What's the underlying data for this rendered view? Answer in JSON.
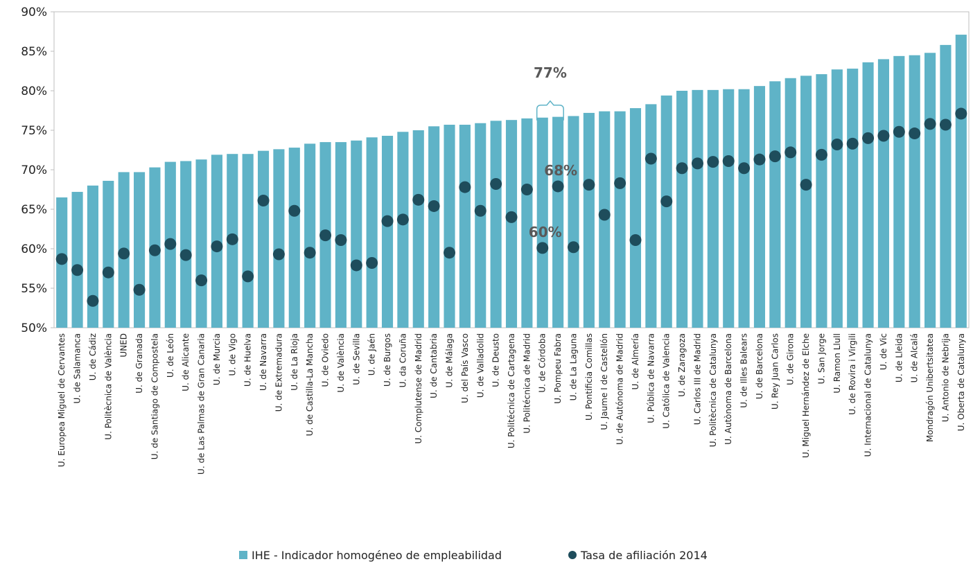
{
  "chart_data": {
    "type": "bar",
    "title": "",
    "xlabel": "",
    "ylabel": "",
    "ylim": [
      50,
      90
    ],
    "yticks": [
      "50%",
      "55%",
      "60%",
      "65%",
      "70%",
      "75%",
      "80%",
      "85%",
      "90%"
    ],
    "grid": false,
    "legend_position": "bottom",
    "categories": [
      "U. Europea Miguel de Cervantes",
      "U. de Salamanca",
      "U. de Cádiz",
      "U. Politècnica de València",
      "UNED",
      "U. de Granada",
      "U. de Santiago de Compostela",
      "U. de León",
      "U. de Alicante",
      "U. de Las Palmas de Gran Canaria",
      "U. de Murcia",
      "U. de Vigo",
      "U. de Huelva",
      "U. de Navarra",
      "U. de Extremadura",
      "U. de La Rioja",
      "U. de Castilla-La Mancha",
      "U. de Oviedo",
      "U. de València",
      "U. de Sevilla",
      "U. de Jaén",
      "U. de Burgos",
      "U. da Coruña",
      "U. Complutense de Madrid",
      "U. de Cantabria",
      "U. de Málaga",
      "U. del País Vasco",
      "U. de Valladolid",
      "U. de Deusto",
      "U. Politécnica de Cartagena",
      "U. Politécnica de Madrid",
      "U. de Córdoba",
      "U. Pompeu Fabra",
      "U. de La Laguna",
      "U. Pontificia Comillas",
      "U. Jaume I de Castellón",
      "U. de Autónoma de Madrid",
      "U. de Almería",
      "U. Pública de Navarra",
      "U. Católica de Valencia",
      "U. de Zaragoza",
      "U. Carlos III de Madrid",
      "U. Politècnica de Catalunya",
      "U. Autònoma de Barcelona",
      "U. de Illes Balears",
      "U. de Barcelona",
      "U. Rey Juan Carlos",
      "U. de Girona",
      "U. Miguel Hernández de Elche",
      "U. San Jorge",
      "U. Ramon Llull",
      "U. de Rovira i Virgili",
      "U. Internacional de Catalunya",
      "U. de Vic",
      "U. de Lleida",
      "U. de Alcalá",
      "Mondragón Unibertsitatea",
      "U. Antonio de Nebrija",
      "U. Oberta de Catalunya"
    ],
    "series": [
      {
        "name": "IHE - Indicador homogéneo de empleabilidad",
        "type": "bar",
        "color": "#5fb3c7",
        "values": [
          66.5,
          67.2,
          68.0,
          68.6,
          69.7,
          69.7,
          70.3,
          71.0,
          71.1,
          71.3,
          71.9,
          72.0,
          72.0,
          72.4,
          72.6,
          72.8,
          73.3,
          73.5,
          73.5,
          73.7,
          74.1,
          74.3,
          74.8,
          75.0,
          75.5,
          75.7,
          75.7,
          75.9,
          76.2,
          76.3,
          76.5,
          76.6,
          76.7,
          76.8,
          77.2,
          77.4,
          77.4,
          77.8,
          78.3,
          79.4,
          80.0,
          80.1,
          80.1,
          80.2,
          80.2,
          80.6,
          81.2,
          81.6,
          81.9,
          82.1,
          82.7,
          82.8,
          83.6,
          84.0,
          84.4,
          84.5,
          84.8,
          85.8,
          87.1
        ]
      },
      {
        "name": "Tasa de afiliación 2014",
        "type": "scatter",
        "color": "#1e4d5c",
        "values": [
          58.7,
          57.3,
          53.4,
          57.0,
          59.4,
          54.8,
          59.8,
          60.6,
          59.2,
          56.0,
          60.3,
          61.2,
          56.5,
          66.1,
          59.3,
          64.8,
          59.5,
          61.7,
          61.1,
          57.9,
          58.2,
          63.5,
          63.7,
          66.2,
          65.4,
          59.5,
          67.8,
          64.8,
          68.2,
          64.0,
          67.5,
          60.1,
          67.9,
          60.2,
          68.1,
          64.3,
          68.3,
          61.1,
          71.4,
          66.0,
          70.2,
          70.8,
          71.0,
          71.1,
          70.2,
          71.3,
          71.7,
          72.2,
          68.1,
          71.9,
          73.2,
          73.3,
          74.0,
          74.3,
          74.8,
          74.6,
          75.8,
          75.7,
          77.1
        ]
      }
    ],
    "annotations": [
      {
        "text": "77%",
        "category": "U. Pompeu Fabra",
        "kind": "bar-range-brace",
        "value": 77
      },
      {
        "text": "68%",
        "category": "U. Pompeu Fabra",
        "value": 68
      },
      {
        "text": "60%",
        "category": "U. de Córdoba",
        "value": 60
      }
    ]
  },
  "legend": {
    "items": [
      {
        "label": "IHE - Indicador homogéneo de empleabilidad",
        "shape": "square",
        "color": "#5fb3c7"
      },
      {
        "label": "Tasa de afiliación 2014",
        "shape": "circle",
        "color": "#1e4d5c"
      }
    ]
  }
}
